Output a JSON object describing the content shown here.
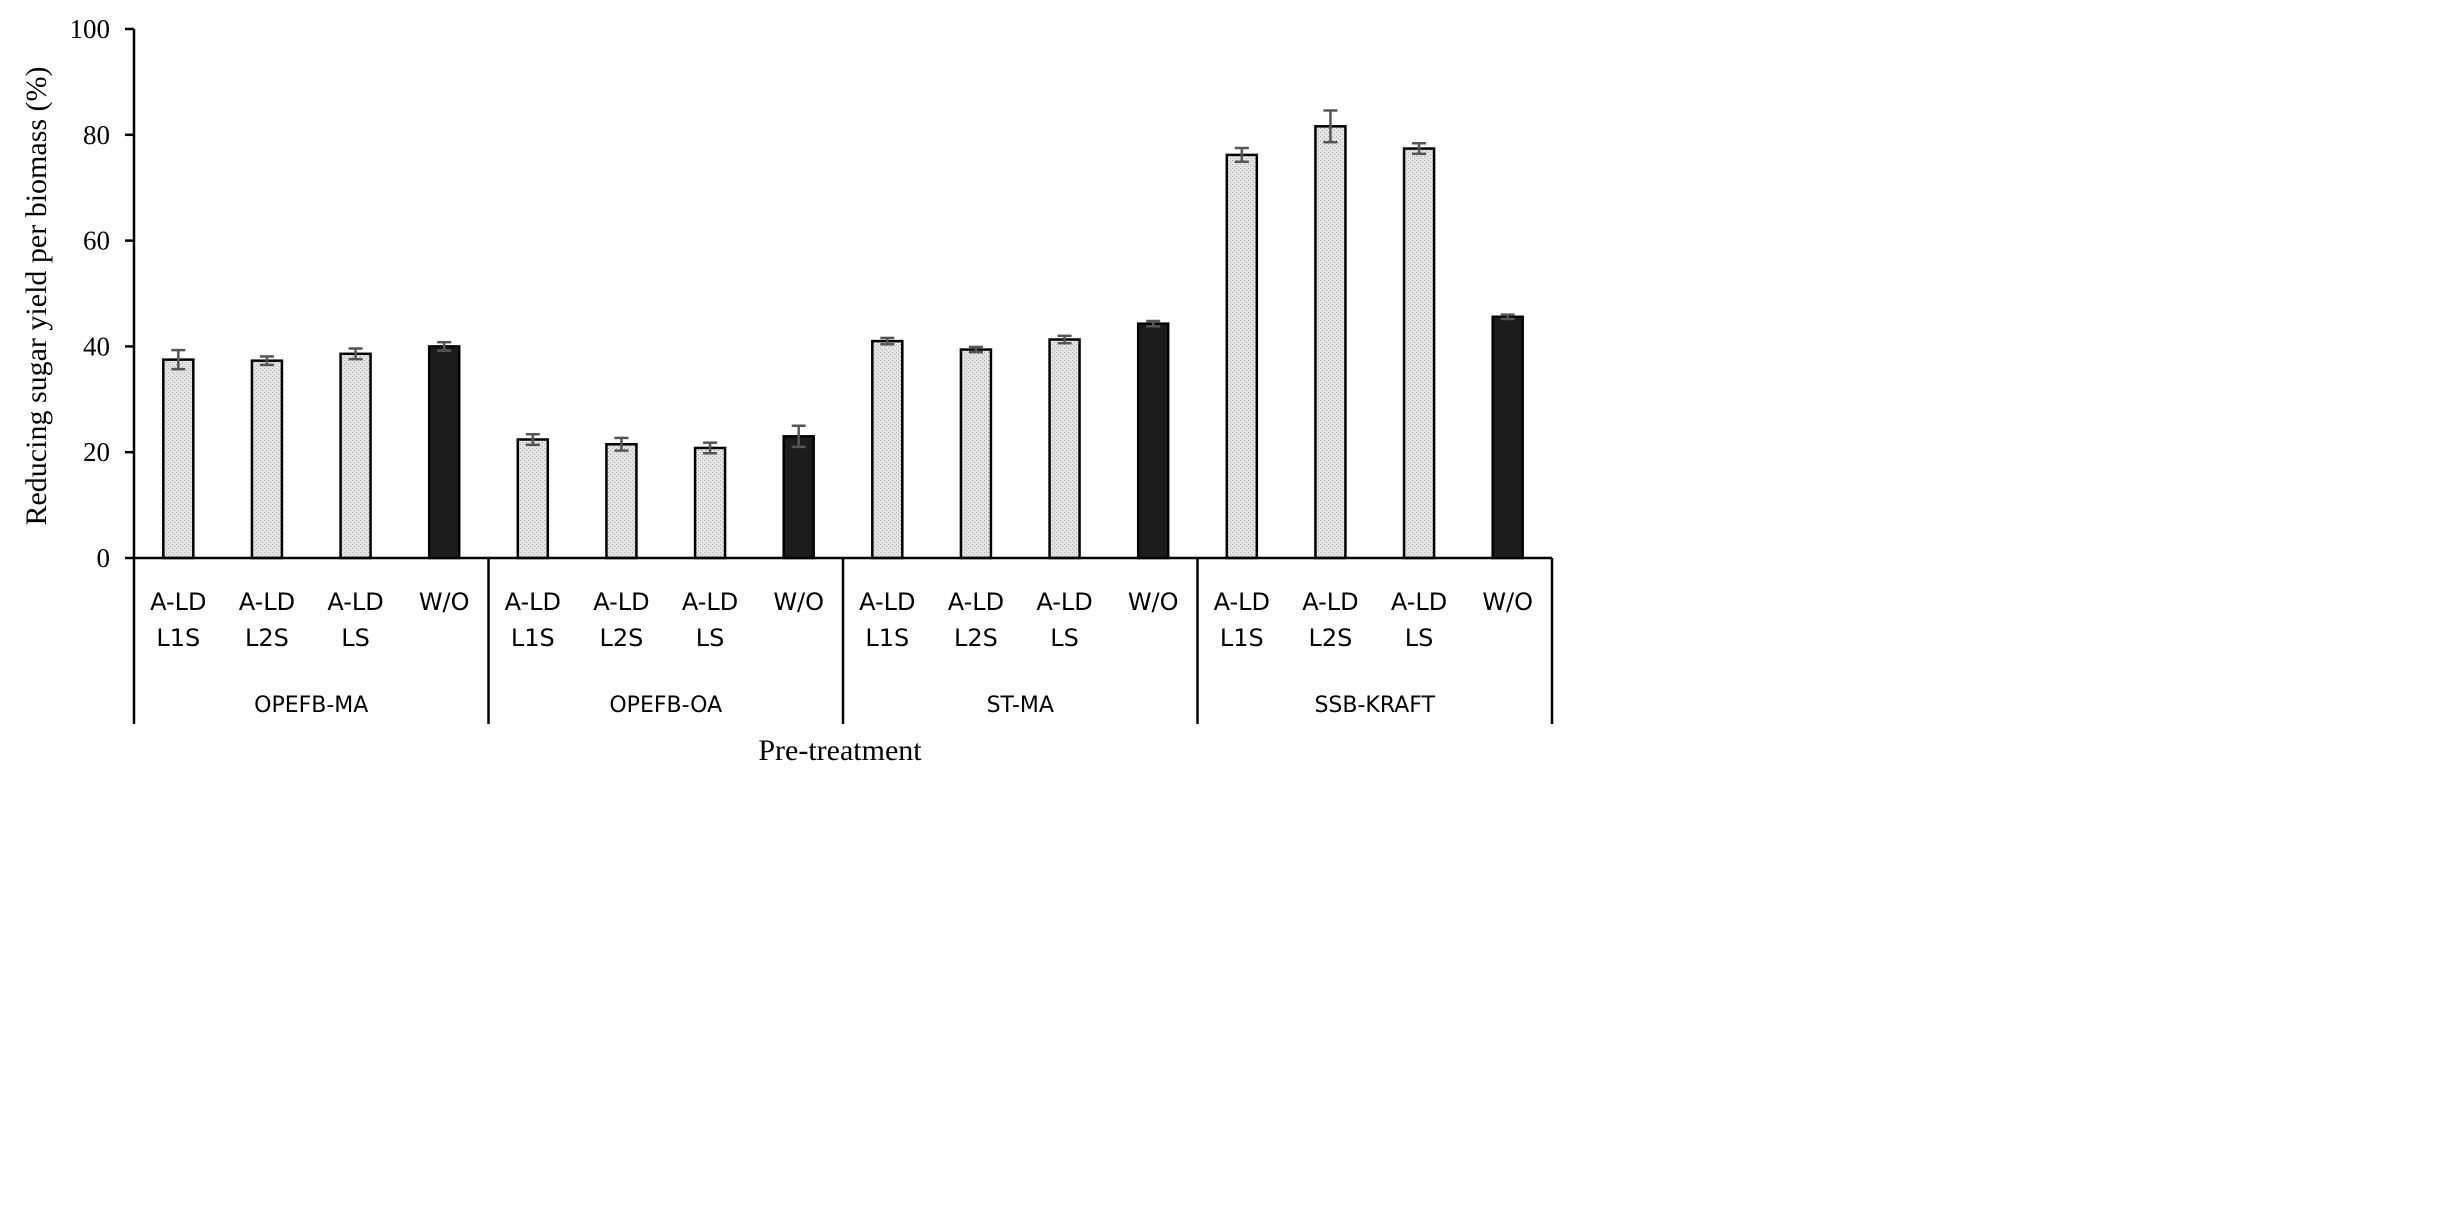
{
  "chart_data": {
    "type": "bar",
    "ylabel": "Reducing sugar yield per biomass (%)",
    "xlabel": "Pre-treatment",
    "ylim": [
      0,
      100
    ],
    "yticks": [
      0,
      20,
      40,
      60,
      80,
      100
    ],
    "grid": false,
    "legend": "none",
    "colors": {
      "pretreated": "#d9d9d9",
      "control": "#1c1c1c",
      "error_bar": "#555555"
    },
    "groups": [
      {
        "name": "OPEFB-MA",
        "bars": [
          {
            "label": [
              "A-LD",
              "L1S"
            ],
            "value": 37.5,
            "error": 1.8,
            "kind": "pretreated"
          },
          {
            "label": [
              "A-LD",
              "L2S"
            ],
            "value": 37.3,
            "error": 0.8,
            "kind": "pretreated"
          },
          {
            "label": [
              "A-LD",
              "LS"
            ],
            "value": 38.6,
            "error": 1.0,
            "kind": "pretreated"
          },
          {
            "label": [
              "W/O"
            ],
            "value": 40.0,
            "error": 0.8,
            "kind": "control"
          }
        ]
      },
      {
        "name": "OPEFB-OA",
        "bars": [
          {
            "label": [
              "A-LD",
              "L1S"
            ],
            "value": 22.4,
            "error": 1.0,
            "kind": "pretreated"
          },
          {
            "label": [
              "A-LD",
              "L2S"
            ],
            "value": 21.5,
            "error": 1.2,
            "kind": "pretreated"
          },
          {
            "label": [
              "A-LD",
              "LS"
            ],
            "value": 20.8,
            "error": 1.0,
            "kind": "pretreated"
          },
          {
            "label": [
              "W/O"
            ],
            "value": 23.0,
            "error": 2.0,
            "kind": "control"
          }
        ]
      },
      {
        "name": "ST-MA",
        "bars": [
          {
            "label": [
              "A-LD",
              "L1S"
            ],
            "value": 41.0,
            "error": 0.6,
            "kind": "pretreated"
          },
          {
            "label": [
              "A-LD",
              "L2S"
            ],
            "value": 39.4,
            "error": 0.5,
            "kind": "pretreated"
          },
          {
            "label": [
              "A-LD",
              "LS"
            ],
            "value": 41.3,
            "error": 0.7,
            "kind": "pretreated"
          },
          {
            "label": [
              "W/O"
            ],
            "value": 44.3,
            "error": 0.5,
            "kind": "control"
          }
        ]
      },
      {
        "name": "SSB-KRAFT",
        "bars": [
          {
            "label": [
              "A-LD",
              "L1S"
            ],
            "value": 76.2,
            "error": 1.3,
            "kind": "pretreated"
          },
          {
            "label": [
              "A-LD",
              "L2S"
            ],
            "value": 81.6,
            "error": 3.0,
            "kind": "pretreated"
          },
          {
            "label": [
              "A-LD",
              "LS"
            ],
            "value": 77.4,
            "error": 1.0,
            "kind": "pretreated"
          },
          {
            "label": [
              "W/O"
            ],
            "value": 45.6,
            "error": 0.4,
            "kind": "control"
          }
        ]
      }
    ]
  }
}
